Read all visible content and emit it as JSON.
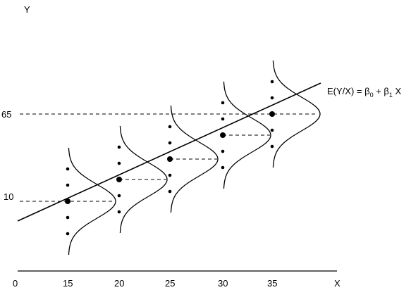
{
  "axis": {
    "y_label": "Y",
    "x_label": "X",
    "x_ticks": [
      0,
      15,
      20,
      25,
      30,
      35
    ],
    "y_ticks": [
      65,
      10
    ]
  },
  "equation": {
    "lhs": "E(Y/X) = β",
    "sub0": "0",
    "plus": " + β",
    "sub1": "1",
    "rhs": " X"
  }
}
